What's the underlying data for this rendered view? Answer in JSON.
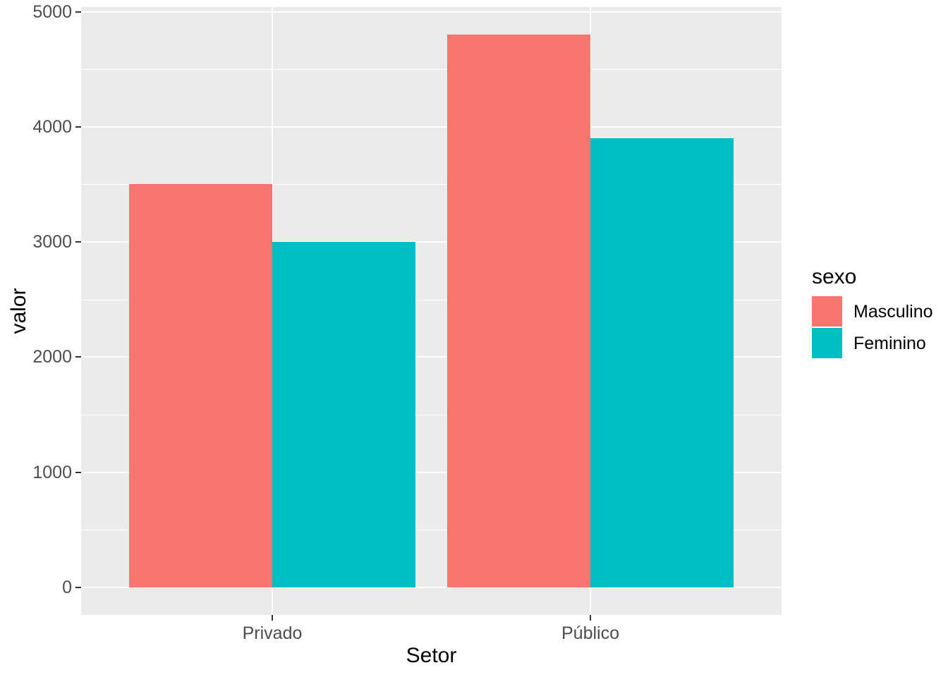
{
  "chart_data": {
    "type": "bar",
    "grouping": "dodged",
    "categories": [
      "Privado",
      "Público"
    ],
    "series": [
      {
        "name": "Masculino",
        "color": "#F8766D",
        "values": [
          3500,
          4800
        ]
      },
      {
        "name": "Feminino",
        "color": "#00BFC4",
        "values": [
          3000,
          3900
        ]
      }
    ],
    "title": "",
    "xlabel": "Setor",
    "ylabel": "valor",
    "ylim": [
      0,
      5000
    ],
    "yticks": [
      0,
      1000,
      2000,
      3000,
      4000,
      5000
    ],
    "yticks_minor": [
      500,
      1500,
      2500,
      3500,
      4500
    ],
    "grid": true,
    "legend": {
      "title": "sexo",
      "position": "right"
    },
    "colors": {
      "panel_background": "#EBEBEB",
      "grid": "#FFFFFF",
      "tick_label": "#4D4D4D",
      "tick_mark": "#333333",
      "axis_title": "#000000"
    },
    "expansion": {
      "y_mult": 0.05,
      "x_add": 0.6,
      "bar_width": 0.45
    }
  }
}
